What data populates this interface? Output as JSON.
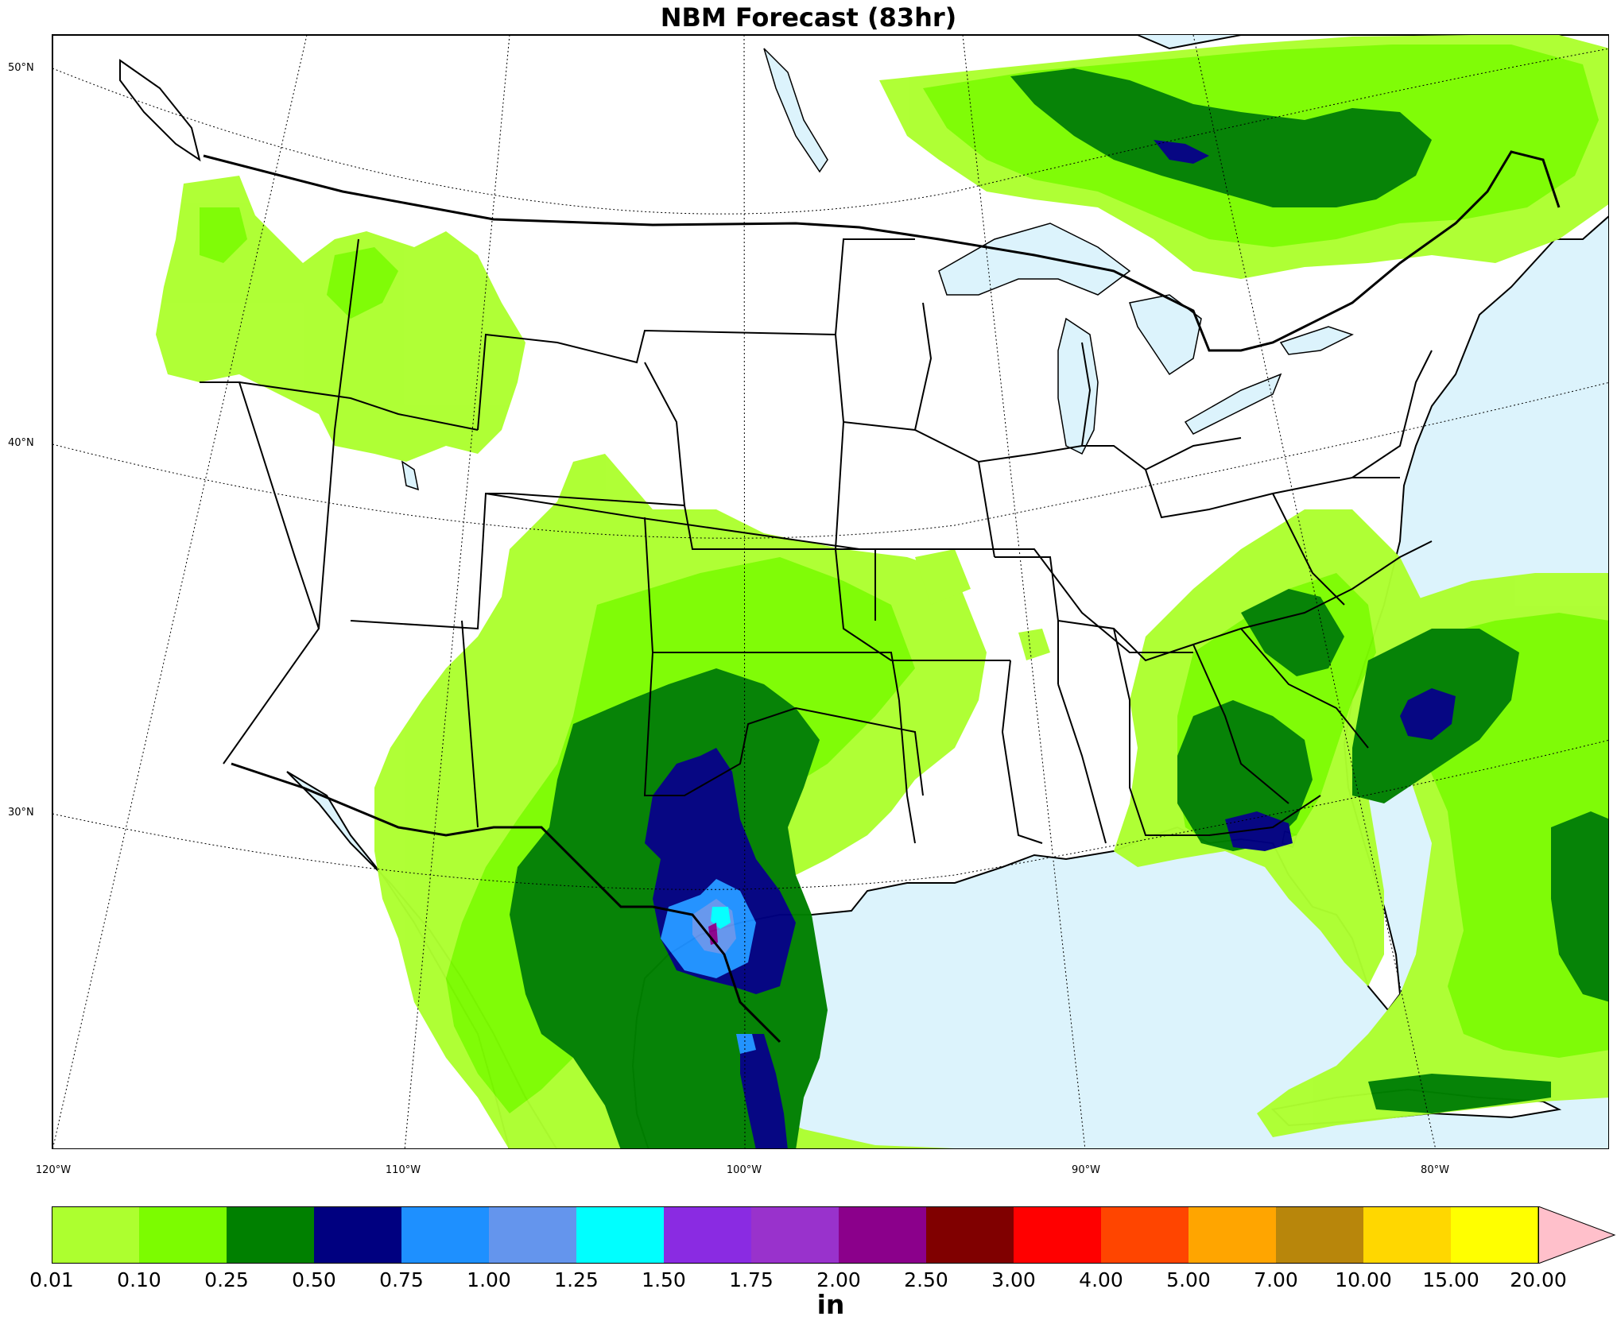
{
  "title": "NBM Forecast (83hr)",
  "units": "in",
  "colors": {
    "ocean": "#dcf3fc",
    "land": "#ffffff",
    "border": "#000000",
    "graticule": "#000000"
  },
  "lat_labels": [
    "50°N",
    "40°N",
    "30°N"
  ],
  "lon_labels": [
    "120°W",
    "110°W",
    "100°W",
    "90°W",
    "80°W"
  ],
  "colorbar": {
    "ticks": [
      "0.01",
      "0.10",
      "0.25",
      "0.50",
      "0.75",
      "1.00",
      "1.25",
      "1.50",
      "1.75",
      "2.00",
      "2.50",
      "3.00",
      "4.00",
      "5.00",
      "7.00",
      "10.00",
      "15.00",
      "20.00"
    ],
    "colors": [
      "#adff2f",
      "#7cfc00",
      "#008000",
      "#000080",
      "#1e90ff",
      "#6495ed",
      "#00ffff",
      "#8a2be2",
      "#9932cc",
      "#8b008b",
      "#800000",
      "#ff0000",
      "#ff4500",
      "#ffa500",
      "#b8860b",
      "#ffd700",
      "#ffff00"
    ],
    "extend_color": "#ffc0cb"
  },
  "precip_areas": [
    {
      "name": "northwest",
      "level": "0.01-0.25"
    },
    {
      "name": "great lakes / ontario",
      "level": "0.10-0.75"
    },
    {
      "name": "southern plains / texas",
      "level": "0.01-2.00"
    },
    {
      "name": "southeast / florida",
      "level": "0.01-0.75"
    },
    {
      "name": "western atlantic",
      "level": "0.01-0.50"
    }
  ]
}
